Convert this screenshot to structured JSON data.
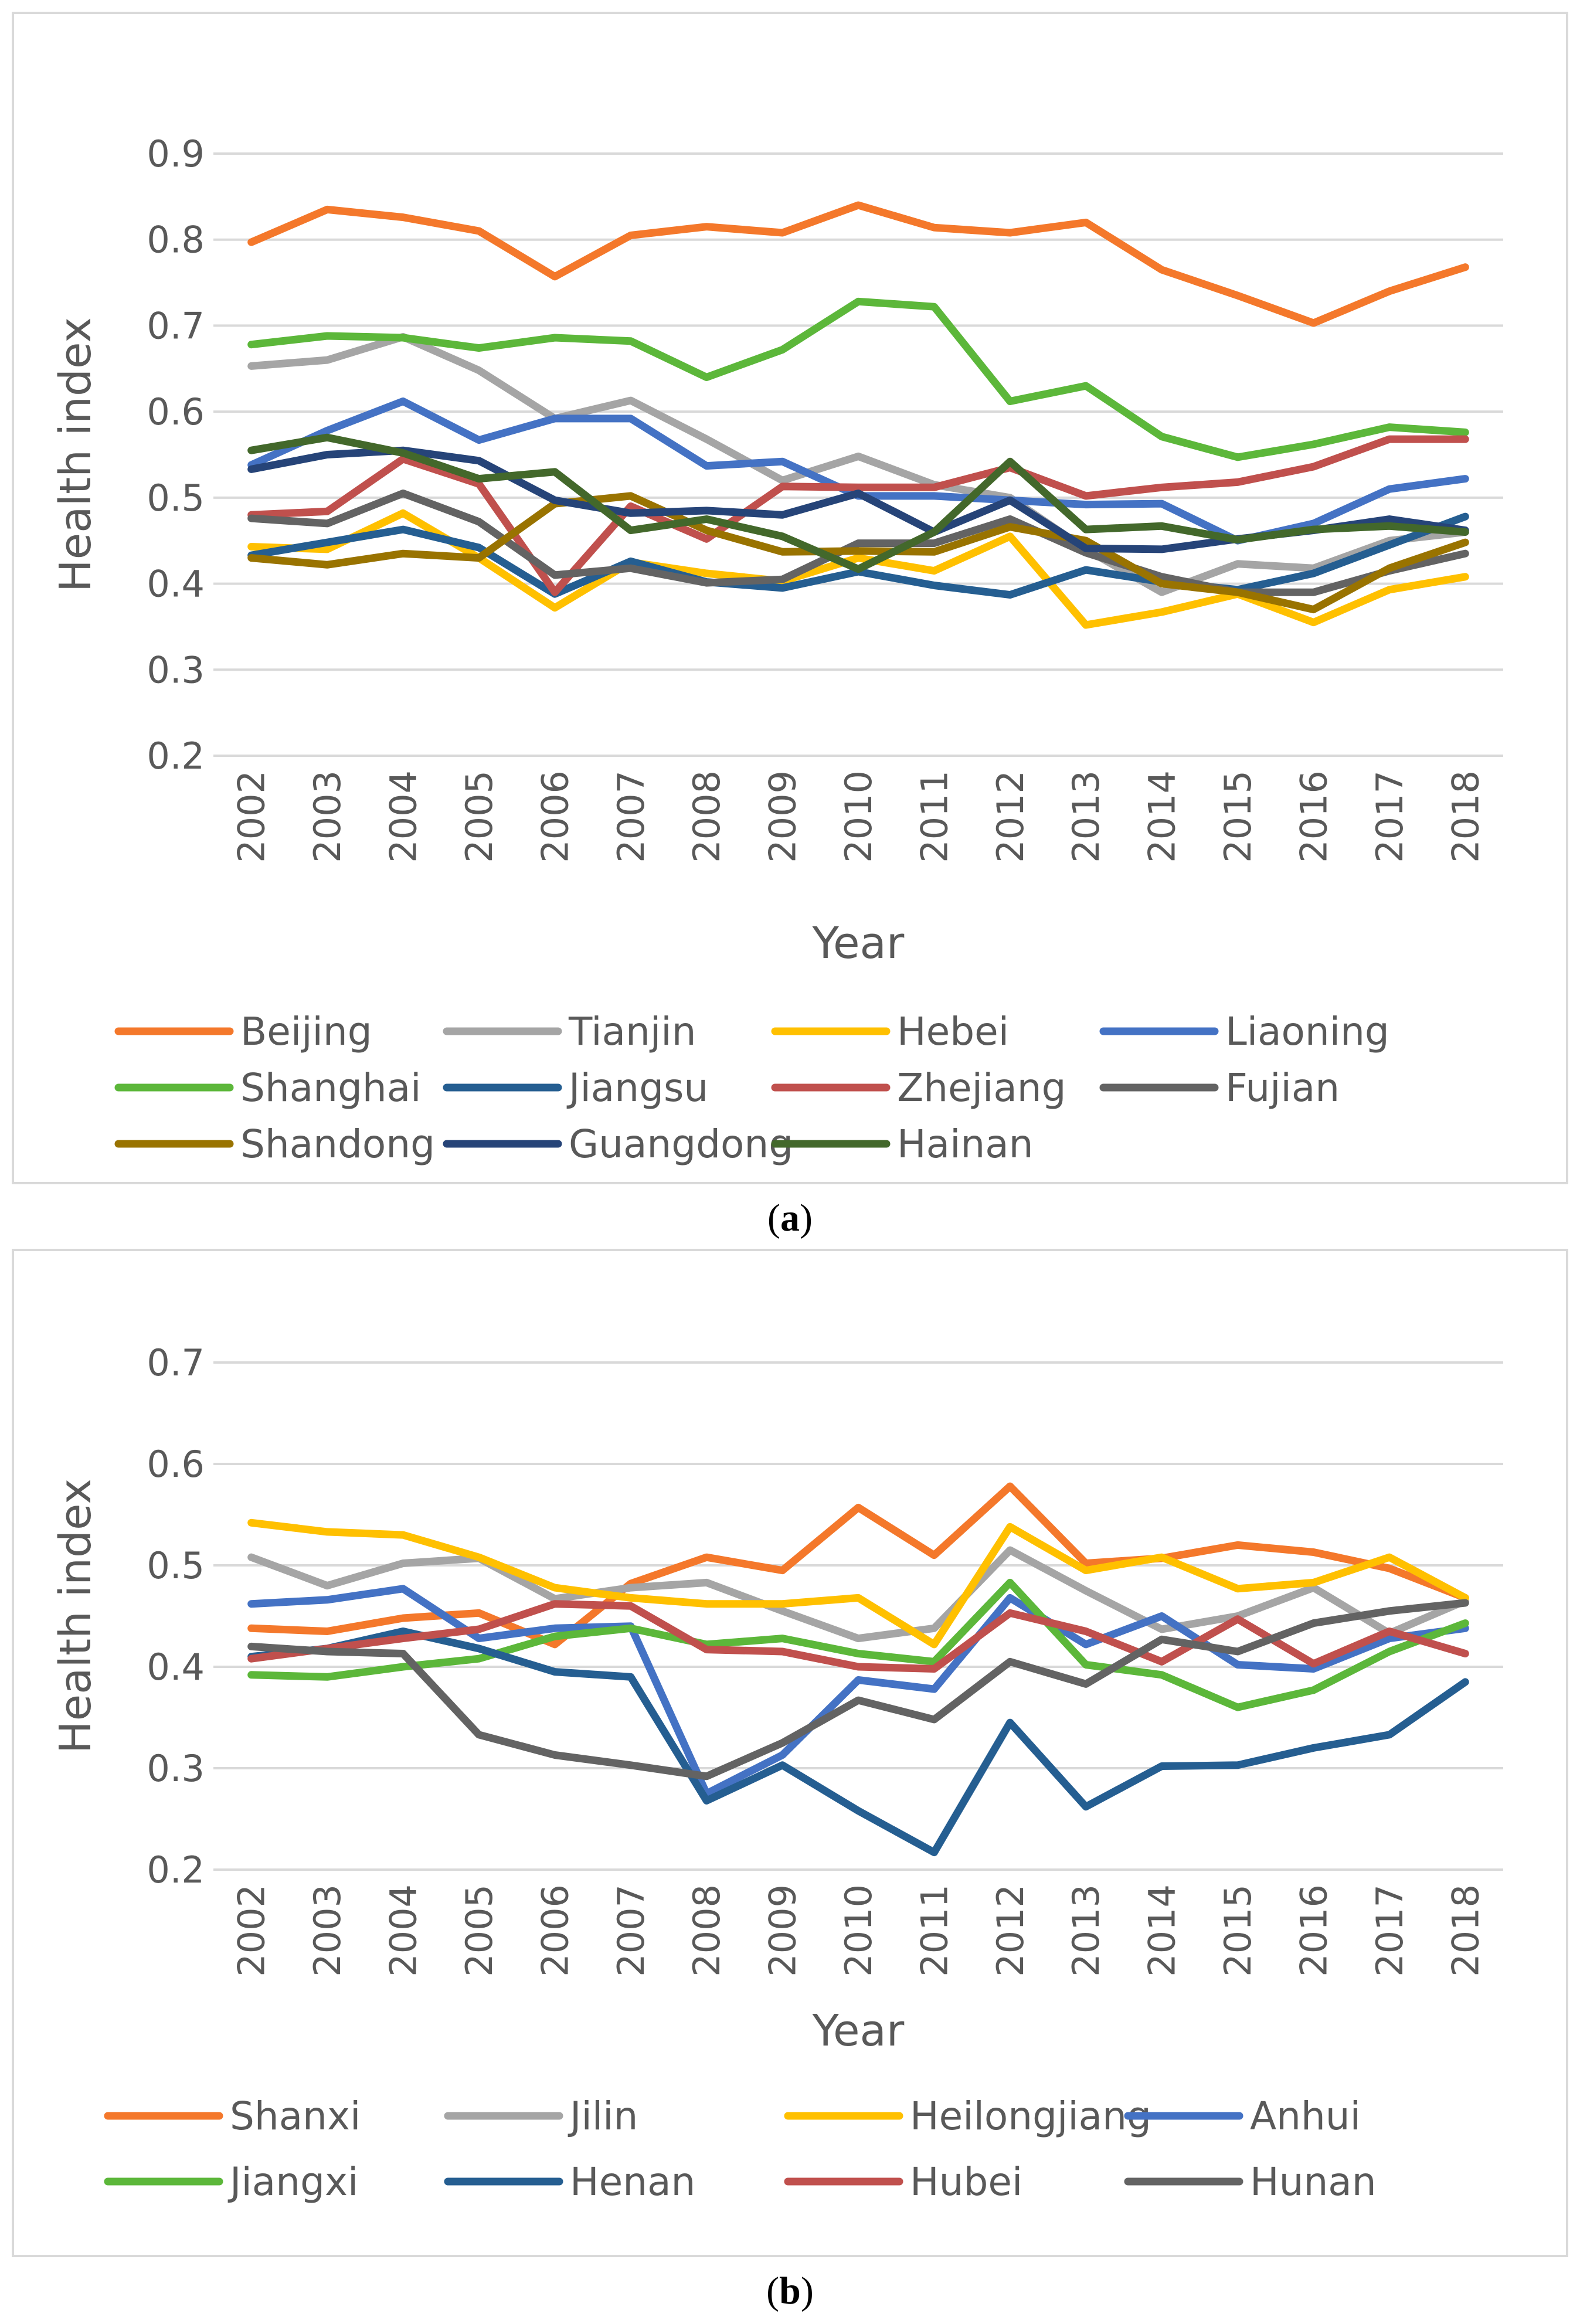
{
  "chart_data": [
    {
      "type": "line",
      "panel_label": "a",
      "title": "",
      "xlabel": "Year",
      "ylabel": "Health index",
      "ylim": [
        0.2,
        0.9
      ],
      "yticks": [
        "0.9",
        "0.8",
        "0.7",
        "0.6",
        "0.5",
        "0.4",
        "0.3",
        "0.2"
      ],
      "legend_position": "bottom",
      "grid": true,
      "categories": [
        "2002",
        "2003",
        "2004",
        "2005",
        "2006",
        "2007",
        "2008",
        "2009",
        "2010",
        "2011",
        "2012",
        "2013",
        "2014",
        "2015",
        "2016",
        "2017",
        "2018"
      ],
      "series": [
        {
          "name": "Beijing",
          "color": "#F4782B",
          "values": [
            0.797,
            0.835,
            0.826,
            0.81,
            0.757,
            0.805,
            0.815,
            0.808,
            0.84,
            0.814,
            0.808,
            0.82,
            0.765,
            0.735,
            0.703,
            0.74,
            0.768
          ]
        },
        {
          "name": "Tianjin",
          "color": "#A5A5A5",
          "values": [
            0.653,
            0.66,
            0.687,
            0.648,
            0.592,
            0.613,
            0.568,
            0.52,
            0.548,
            0.515,
            0.5,
            0.44,
            0.39,
            0.423,
            0.418,
            0.45,
            0.46
          ]
        },
        {
          "name": "Hebei",
          "color": "#FFC000",
          "values": [
            0.443,
            0.44,
            0.482,
            0.43,
            0.372,
            0.425,
            0.412,
            0.403,
            0.43,
            0.415,
            0.455,
            0.352,
            0.367,
            0.388,
            0.355,
            0.393,
            0.408
          ]
        },
        {
          "name": "Liaoning",
          "color": "#4472C4",
          "values": [
            0.538,
            0.578,
            0.612,
            0.567,
            0.592,
            0.592,
            0.537,
            0.542,
            0.502,
            0.502,
            0.497,
            0.492,
            0.493,
            0.45,
            0.47,
            0.51,
            0.522
          ]
        },
        {
          "name": "Shanghai",
          "color": "#5CB73A",
          "values": [
            0.678,
            0.688,
            0.686,
            0.674,
            0.686,
            0.682,
            0.64,
            0.672,
            0.728,
            0.722,
            0.612,
            0.63,
            0.571,
            0.547,
            0.562,
            0.582,
            0.576
          ]
        },
        {
          "name": "Jiangsu",
          "color": "#255E91",
          "values": [
            0.433,
            0.448,
            0.463,
            0.442,
            0.388,
            0.426,
            0.402,
            0.395,
            0.414,
            0.398,
            0.387,
            0.416,
            0.402,
            0.393,
            0.412,
            0.445,
            0.478
          ]
        },
        {
          "name": "Zhejiang",
          "color": "#C0504D",
          "values": [
            0.48,
            0.484,
            0.545,
            0.516,
            0.39,
            0.49,
            0.452,
            0.513,
            0.512,
            0.512,
            0.535,
            0.502,
            0.512,
            0.518,
            0.536,
            0.568,
            0.568
          ]
        },
        {
          "name": "Fujian",
          "color": "#636363",
          "values": [
            0.476,
            0.47,
            0.505,
            0.472,
            0.41,
            0.418,
            0.401,
            0.405,
            0.447,
            0.447,
            0.475,
            0.436,
            0.408,
            0.39,
            0.39,
            0.415,
            0.435
          ]
        },
        {
          "name": "Shandong",
          "color": "#997300",
          "values": [
            0.43,
            0.422,
            0.435,
            0.43,
            0.493,
            0.502,
            0.462,
            0.437,
            0.438,
            0.437,
            0.466,
            0.45,
            0.4,
            0.39,
            0.37,
            0.418,
            0.448
          ]
        },
        {
          "name": "Guangdong",
          "color": "#264478",
          "values": [
            0.533,
            0.55,
            0.555,
            0.543,
            0.497,
            0.482,
            0.485,
            0.48,
            0.505,
            0.46,
            0.497,
            0.441,
            0.44,
            0.452,
            0.462,
            0.475,
            0.462
          ]
        },
        {
          "name": "Hainan",
          "color": "#43682B",
          "values": [
            0.555,
            0.57,
            0.552,
            0.522,
            0.53,
            0.462,
            0.475,
            0.455,
            0.417,
            0.46,
            0.542,
            0.463,
            0.467,
            0.451,
            0.463,
            0.467,
            0.46
          ]
        }
      ]
    },
    {
      "type": "line",
      "panel_label": "b",
      "title": "",
      "xlabel": "Year",
      "ylabel": "Health index",
      "ylim": [
        0.2,
        0.7
      ],
      "yticks": [
        "0.7",
        "0.6",
        "0.5",
        "0.4",
        "0.3",
        "0.2"
      ],
      "legend_position": "bottom",
      "grid": true,
      "categories": [
        "2002",
        "2003",
        "2004",
        "2005",
        "2006",
        "2007",
        "2008",
        "2009",
        "2010",
        "2011",
        "2012",
        "2013",
        "2014",
        "2015",
        "2016",
        "2017",
        "2018"
      ],
      "series": [
        {
          "name": "Shanxi",
          "color": "#F4782B",
          "values": [
            0.438,
            0.435,
            0.448,
            0.453,
            0.422,
            0.482,
            0.508,
            0.495,
            0.557,
            0.51,
            0.578,
            0.502,
            0.507,
            0.52,
            0.513,
            0.497,
            0.468
          ]
        },
        {
          "name": "Jilin",
          "color": "#A5A5A5",
          "values": [
            0.508,
            0.48,
            0.502,
            0.507,
            0.467,
            0.478,
            0.483,
            0.455,
            0.428,
            0.438,
            0.515,
            0.475,
            0.437,
            0.45,
            0.478,
            0.433,
            0.465
          ]
        },
        {
          "name": "Heilongjiang",
          "color": "#FFC000",
          "values": [
            0.542,
            0.533,
            0.53,
            0.508,
            0.478,
            0.468,
            0.462,
            0.462,
            0.468,
            0.422,
            0.538,
            0.495,
            0.508,
            0.477,
            0.483,
            0.508,
            0.468
          ]
        },
        {
          "name": "Anhui",
          "color": "#4472C4",
          "values": [
            0.462,
            0.466,
            0.477,
            0.428,
            0.438,
            0.44,
            0.275,
            0.313,
            0.387,
            0.378,
            0.468,
            0.422,
            0.45,
            0.402,
            0.398,
            0.428,
            0.438
          ]
        },
        {
          "name": "Jiangxi",
          "color": "#5CB73A",
          "values": [
            0.392,
            0.39,
            0.4,
            0.408,
            0.43,
            0.438,
            0.422,
            0.428,
            0.413,
            0.405,
            0.483,
            0.402,
            0.392,
            0.36,
            0.377,
            0.415,
            0.443
          ]
        },
        {
          "name": "Henan",
          "color": "#255E91",
          "values": [
            0.41,
            0.418,
            0.435,
            0.418,
            0.395,
            0.39,
            0.268,
            0.303,
            0.258,
            0.217,
            0.345,
            0.262,
            0.302,
            0.303,
            0.32,
            0.333,
            0.385
          ]
        },
        {
          "name": "Hubei",
          "color": "#C0504D",
          "values": [
            0.408,
            0.418,
            0.428,
            0.437,
            0.462,
            0.46,
            0.417,
            0.415,
            0.4,
            0.398,
            0.453,
            0.435,
            0.405,
            0.447,
            0.403,
            0.435,
            0.413
          ]
        },
        {
          "name": "Hunan",
          "color": "#636363",
          "values": [
            0.42,
            0.415,
            0.413,
            0.333,
            0.313,
            0.303,
            0.292,
            0.325,
            0.367,
            0.348,
            0.405,
            0.383,
            0.427,
            0.415,
            0.443,
            0.455,
            0.463
          ]
        }
      ]
    }
  ],
  "captions": {
    "a": "(a)",
    "b": "(b)"
  }
}
